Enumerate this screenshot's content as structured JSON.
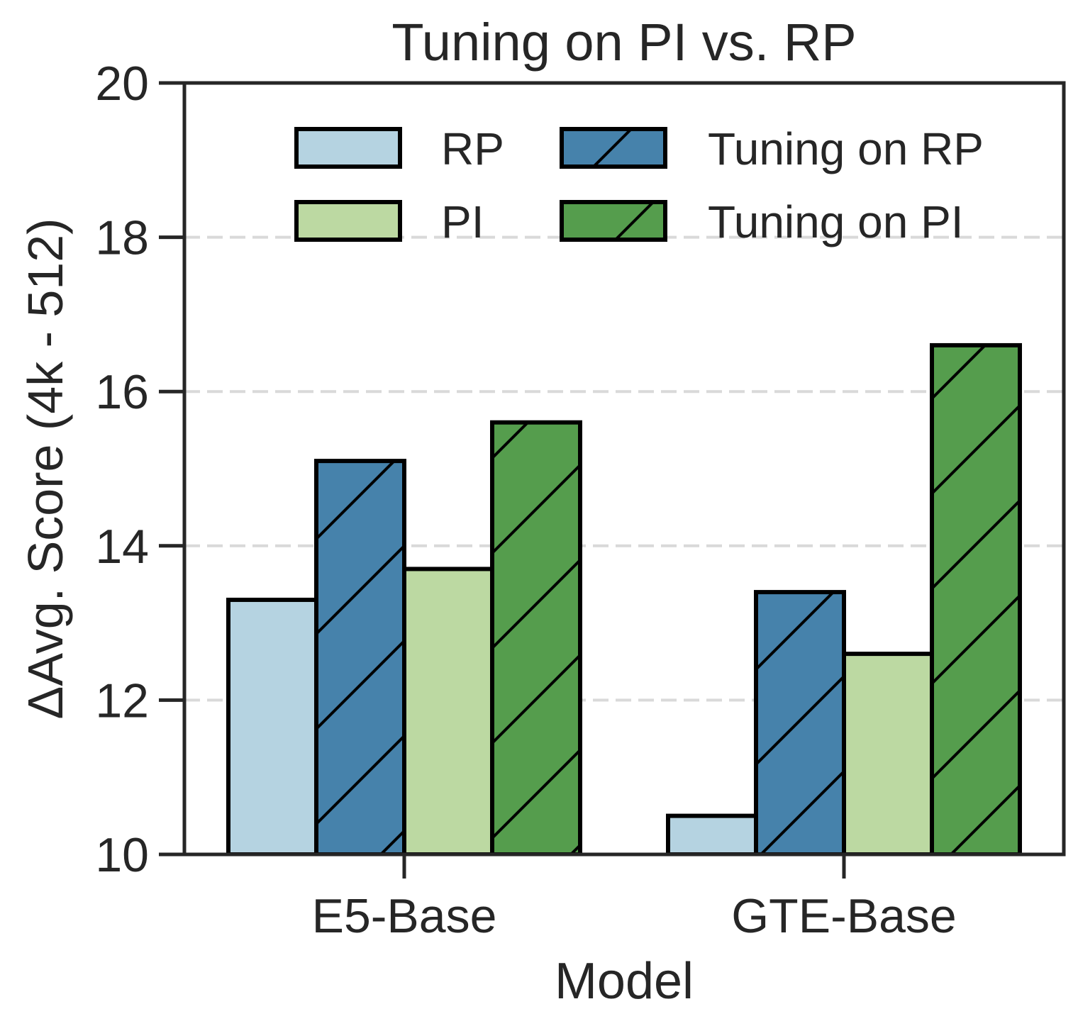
{
  "chart_data": {
    "type": "bar",
    "title": "Tuning on PI vs. RP",
    "xlabel": "Model",
    "ylabel": "ΔAvg. Score (4k - 512)",
    "categories": [
      "E5-Base",
      "GTE-Base"
    ],
    "ylim": [
      10,
      20
    ],
    "yticks": [
      10,
      12,
      14,
      16,
      18,
      20
    ],
    "grid": true,
    "legend_position": "top-right",
    "series": [
      {
        "name": "RP",
        "values": [
          13.3,
          10.5
        ],
        "color": "#b5d3e1",
        "hatch": false
      },
      {
        "name": "Tuning on RP",
        "values": [
          15.1,
          13.4
        ],
        "color": "#4682ab",
        "hatch": true
      },
      {
        "name": "PI",
        "values": [
          13.7,
          12.6
        ],
        "color": "#bcd9a2",
        "hatch": false
      },
      {
        "name": "Tuning on PI",
        "values": [
          15.6,
          16.6
        ],
        "color": "#559d4d",
        "hatch": true
      }
    ],
    "legend_order": [
      "RP",
      "Tuning on RP",
      "PI",
      "Tuning on PI"
    ]
  }
}
